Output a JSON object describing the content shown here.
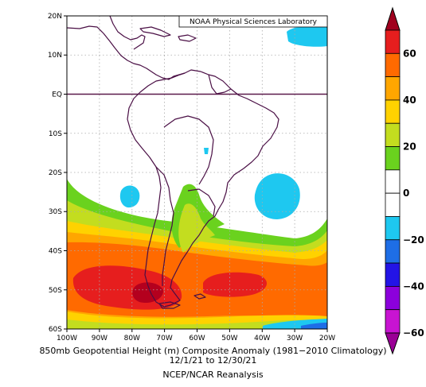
{
  "map": {
    "credit": "NOAA Physical Sciences Laboratory",
    "lat_labels": [
      "20N",
      "10N",
      "EQ",
      "10S",
      "20S",
      "30S",
      "40S",
      "50S",
      "60S"
    ],
    "lon_labels": [
      "100W",
      "90W",
      "80W",
      "70W",
      "60W",
      "50W",
      "40W",
      "30W",
      "20W"
    ]
  },
  "colorbar": {
    "ticks": [
      "60",
      "40",
      "20",
      "0",
      "−20",
      "−40",
      "−60"
    ],
    "colors": [
      "#a0001e",
      "#e61e1e",
      "#ff6a00",
      "#ffa600",
      "#ffd200",
      "#c3dd1f",
      "#6ad21e",
      "#ffffff",
      "#ffffff",
      "#1ec8f0",
      "#1e6ee6",
      "#2314e6",
      "#8c00dc",
      "#c814d2",
      "#9a0096"
    ]
  },
  "caption": {
    "line1": "850mb Geopotential Height (m) Composite Anomaly (1981−2010 Climatology)",
    "line2": "12/1/21  to 12/30/21",
    "line3": "NCEP/NCAR Reanalysis"
  }
}
